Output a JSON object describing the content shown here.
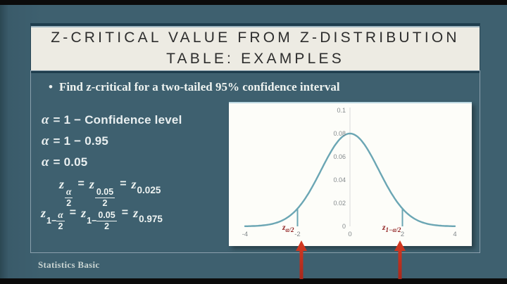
{
  "title": {
    "line1": "Z-CRITICAL VALUE FROM Z-DISTRIBUTION",
    "line2": "TABLE: EXAMPLES"
  },
  "bullet": {
    "marker": "•",
    "text": "Find z-critical for a two-tailed 95% confidence interval"
  },
  "alpha_steps": [
    {
      "lhs": "α",
      "rest": "= 1 − Confidence level"
    },
    {
      "lhs": "α",
      "rest": "= 1 − 0.95"
    },
    {
      "lhs": "α",
      "rest": "= 0.05"
    }
  ],
  "formulas": {
    "line1": {
      "z1": "z",
      "s1_num": "α",
      "s1_den": "2",
      "eq1": "=",
      "z2": "z",
      "s2_num": "0.05",
      "s2_den": "2",
      "eq2": "=",
      "z3": "z",
      "s3": "0.025"
    },
    "line2": {
      "z1": "z",
      "s1_pre": "1−",
      "s1_num": "α",
      "s1_den": "2",
      "eq1": "=",
      "z2": "z",
      "s2_pre": "1−",
      "s2_num": "0.05",
      "s2_den": "2",
      "eq2": "=",
      "z3": "z",
      "s3": "0.975"
    }
  },
  "chart_data": {
    "type": "line",
    "title": "",
    "xlabel": "",
    "ylabel": "",
    "xlim": [
      -4,
      4
    ],
    "ylim": [
      0,
      0.1
    ],
    "gaussian": {
      "mean": 0,
      "sigma": 1.1,
      "peak": 0.08
    },
    "points": [
      {
        "x": -4,
        "y": 0.0001
      },
      {
        "x": -3,
        "y": 0.0019
      },
      {
        "x": -2,
        "y": 0.0153
      },
      {
        "x": -1,
        "y": 0.0529
      },
      {
        "x": 0,
        "y": 0.08
      },
      {
        "x": 1,
        "y": 0.0529
      },
      {
        "x": 2,
        "y": 0.0153
      },
      {
        "x": 3,
        "y": 0.0019
      },
      {
        "x": 4,
        "y": 0.0001
      }
    ],
    "x_ticks": [
      -4,
      -2,
      0,
      2,
      4
    ],
    "x_tick_labels": [
      "-4",
      "-2",
      "0",
      "2",
      "4"
    ],
    "y_ticks": [
      0,
      0.02,
      0.04,
      0.06,
      0.08,
      0.1
    ],
    "y_tick_labels": [
      "0",
      "0.02",
      "0.04",
      "0.06",
      "0.08",
      "0.1"
    ],
    "drop_lines_x": [
      -2,
      2
    ],
    "markers": [
      {
        "x": -2,
        "base": "z",
        "sub": "α/2",
        "tick": "-2"
      },
      {
        "x": 2,
        "base": "z",
        "sub": "1−α/2",
        "tick": "2"
      }
    ],
    "colors": {
      "curve": "#6ba6b4",
      "axis": "#d9d9d9",
      "tick_text": "#83898c",
      "marker_text": "#8e1c1c",
      "arrow": "#c5281c"
    },
    "legend": null,
    "grid": false
  },
  "footer": {
    "text": "Statistics Basic"
  }
}
